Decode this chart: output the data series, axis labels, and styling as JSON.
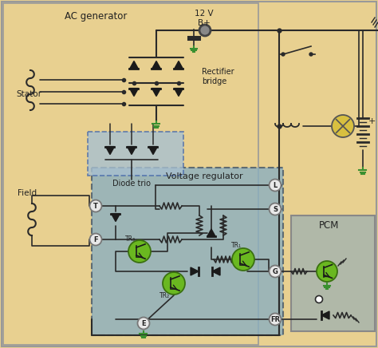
{
  "bg_tan": "#e8d090",
  "bg_vr": "#8aafc0",
  "bg_pcm": "#b0b8a8",
  "bg_diode_trio": "#a8c0d0",
  "wire_color": "#2a2a2a",
  "diode_color": "#1a1a1a",
  "green_tr": "#6ab820",
  "green_tr_border": "#3a7010",
  "connector_fill": "#e0e0e0",
  "connector_border": "#888888",
  "ground_color": "#3a9030",
  "lamp_fill": "#d8c040",
  "battery_color": "#2a2a2a",
  "label_color": "#222222",
  "ac_generator_label": "AC generator",
  "stator_label": "Stator",
  "rectifier_label": "Rectifier\nbridge",
  "diode_trio_label": "Diode trio",
  "voltage_reg_label": "Voltage regulator",
  "field_label": "Field",
  "pcm_label": "PCM",
  "v12_label": "12 V\nB+"
}
